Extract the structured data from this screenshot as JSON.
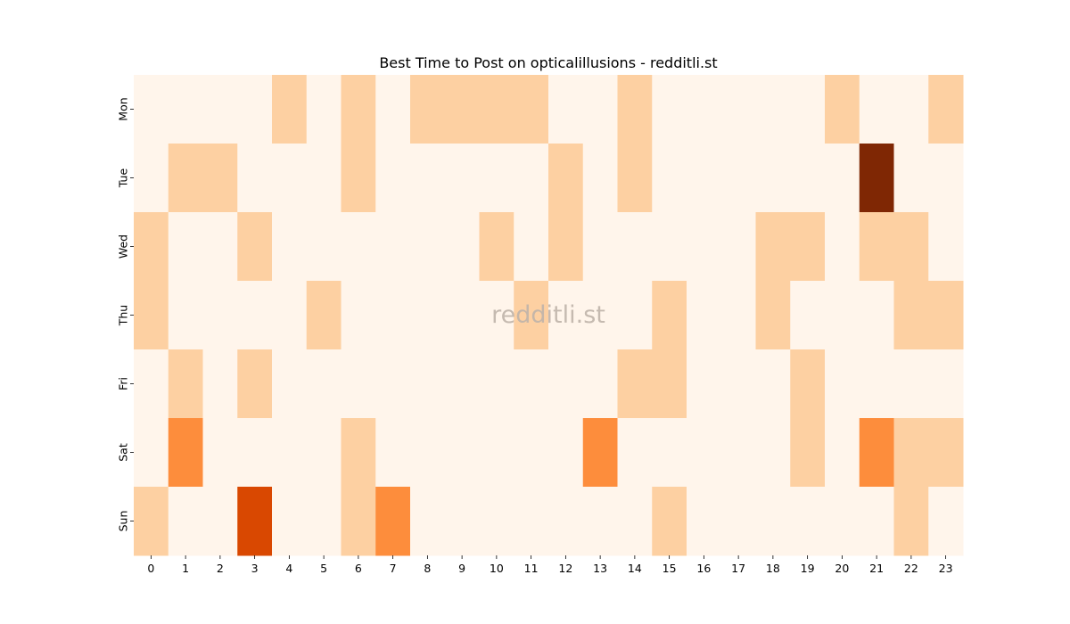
{
  "chart_data": {
    "type": "heatmap",
    "title": "Best Time to Post on opticalillusions - redditli.st",
    "xlabel": "",
    "ylabel": "",
    "x_categories": [
      "0",
      "1",
      "2",
      "3",
      "4",
      "5",
      "6",
      "7",
      "8",
      "9",
      "10",
      "11",
      "12",
      "13",
      "14",
      "15",
      "16",
      "17",
      "18",
      "19",
      "20",
      "21",
      "22",
      "23"
    ],
    "y_categories": [
      "Mon",
      "Tue",
      "Wed",
      "Thu",
      "Fri",
      "Sat",
      "Sun"
    ],
    "values": [
      [
        0,
        0,
        0,
        0,
        1,
        0,
        1,
        0,
        1,
        1,
        1,
        1,
        0,
        0,
        1,
        0,
        0,
        0,
        0,
        0,
        1,
        0,
        0,
        1
      ],
      [
        0,
        1,
        1,
        0,
        0,
        0,
        1,
        0,
        0,
        0,
        0,
        0,
        1,
        0,
        1,
        0,
        0,
        0,
        0,
        0,
        0,
        5,
        0,
        0
      ],
      [
        1,
        0,
        0,
        1,
        0,
        0,
        0,
        0,
        0,
        0,
        1,
        0,
        1,
        0,
        0,
        0,
        0,
        0,
        1,
        1,
        0,
        1,
        1,
        0
      ],
      [
        1,
        0,
        0,
        0,
        0,
        1,
        0,
        0,
        0,
        0,
        0,
        1,
        0,
        0,
        0,
        1,
        0,
        0,
        1,
        0,
        0,
        0,
        1,
        1
      ],
      [
        0,
        1,
        0,
        1,
        0,
        0,
        0,
        0,
        0,
        0,
        0,
        0,
        0,
        0,
        1,
        1,
        0,
        0,
        0,
        1,
        0,
        0,
        0,
        0
      ],
      [
        0,
        2,
        0,
        0,
        0,
        0,
        1,
        0,
        0,
        0,
        0,
        0,
        0,
        2,
        0,
        0,
        0,
        0,
        0,
        1,
        0,
        2,
        1,
        1
      ],
      [
        1,
        0,
        0,
        3,
        0,
        0,
        1,
        2,
        0,
        0,
        0,
        0,
        0,
        0,
        0,
        1,
        0,
        0,
        0,
        0,
        0,
        0,
        1,
        0
      ]
    ],
    "colormap": [
      "#fff5eb",
      "#fdd0a2",
      "#fd8d3c",
      "#d94801",
      "#a63603",
      "#7f2704"
    ],
    "colorbar": false,
    "grid": false,
    "watermark": "redditli.st"
  }
}
